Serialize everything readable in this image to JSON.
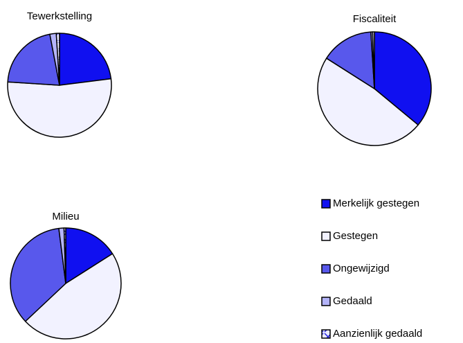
{
  "chart_data": [
    {
      "type": "pie",
      "title": "Tewerkstelling",
      "values": [
        23,
        53,
        21,
        2,
        1
      ]
    },
    {
      "type": "pie",
      "title": "Fiscaliteit",
      "values": [
        36,
        48,
        15,
        0.5,
        0.5
      ]
    },
    {
      "type": "pie",
      "title": "Milieu",
      "values": [
        16,
        47,
        35,
        1.5,
        0.5
      ]
    }
  ],
  "legend": {
    "categories": [
      "Merkelijk gestegen",
      "Gestegen",
      "Ongewijzigd",
      "Gedaald",
      "Aanzienlijk gedaald"
    ],
    "colors": [
      "#1010f0",
      "#f2f2ff",
      "#5858ec",
      "#b4b4fa",
      "url(#xpat)"
    ]
  }
}
